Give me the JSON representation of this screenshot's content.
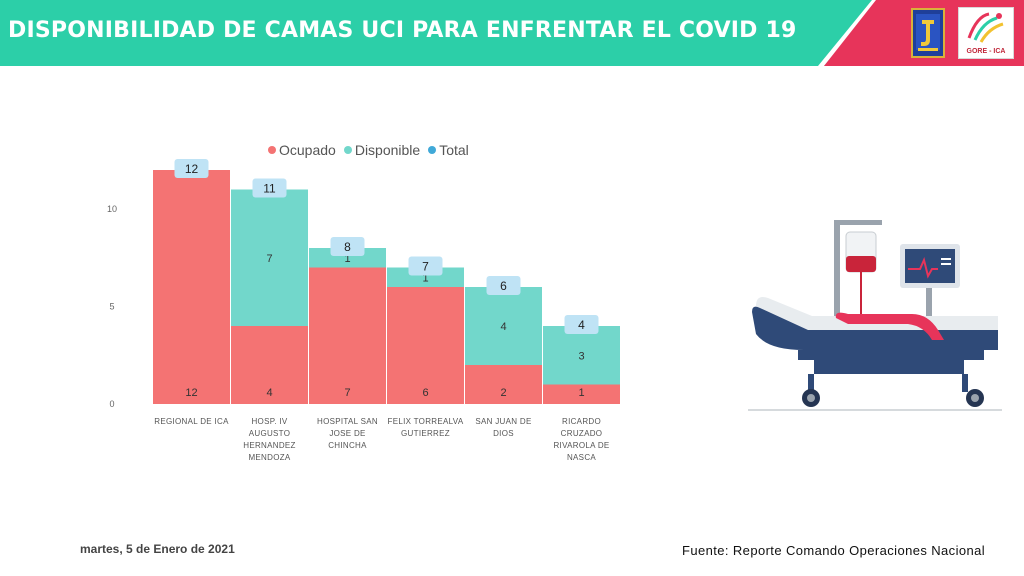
{
  "header": {
    "title": "DISPONIBILIDAD DE CAMAS UCI PARA ENFRENTAR EL COVID 19",
    "logo_right_text": "GORE - ICA",
    "colors": {
      "bar": "#2ccfa8",
      "accent": "#e7345a"
    }
  },
  "chart_data": {
    "type": "bar",
    "stacked": true,
    "categories": [
      "REGIONAL DE ICA",
      "HOSP. IV AUGUSTO HERNANDEZ MENDOZA",
      "HOSPITAL SAN JOSE DE CHINCHA",
      "FELIX TORREALVA GUTIERREZ",
      "SAN JUAN DE DIOS",
      "RICARDO CRUZADO RIVAROLA DE NASCA"
    ],
    "series": [
      {
        "name": "Ocupado",
        "values": [
          12,
          4,
          7,
          6,
          2,
          1
        ],
        "color": "#f47373"
      },
      {
        "name": "Disponible",
        "values": [
          0,
          7,
          1,
          1,
          4,
          3
        ],
        "color": "#72d7cb"
      }
    ],
    "totals": {
      "name": "Total",
      "values": [
        12,
        11,
        8,
        7,
        6,
        4
      ],
      "color": "#40a9d8"
    },
    "y_ticks": [
      0,
      5,
      10
    ],
    "ylim": [
      0,
      12
    ],
    "legend_position": "top",
    "grid": false
  },
  "footer": {
    "date": "martes, 5 de Enero de 2021",
    "source": "Fuente: Reporte Comando Operaciones Nacional"
  }
}
